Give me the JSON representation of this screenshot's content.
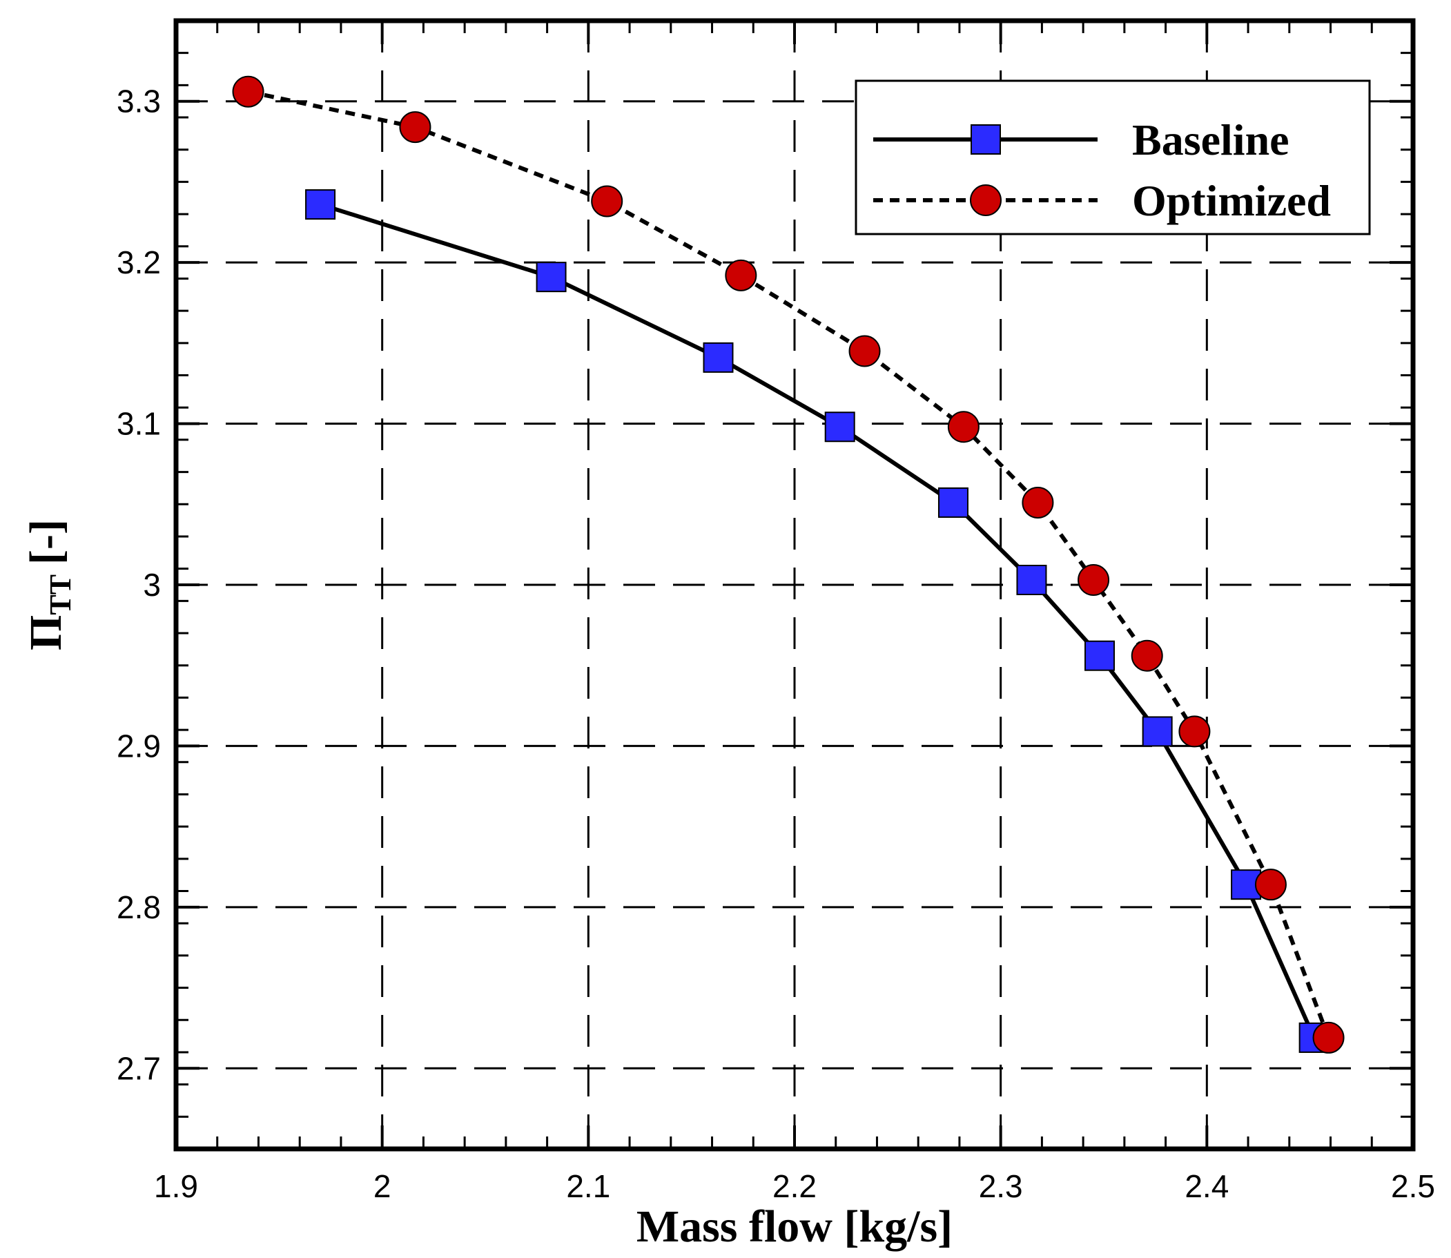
{
  "chart_data": {
    "type": "line",
    "xlabel": "Mass flow [kg/s]",
    "ylabel_main": "Π",
    "ylabel_sub": "TT",
    "ylabel_unit": "[-]",
    "xlim": [
      1.9,
      2.5
    ],
    "ylim": [
      2.65,
      3.35
    ],
    "x_ticks": [
      1.9,
      2.0,
      2.1,
      2.2,
      2.3,
      2.4,
      2.5
    ],
    "x_tick_labels": [
      "1.9",
      "2",
      "2.1",
      "2.2",
      "2.3",
      "2.4",
      "2.5"
    ],
    "y_ticks": [
      2.7,
      2.8,
      2.9,
      3.0,
      3.1,
      3.2,
      3.3
    ],
    "y_tick_labels": [
      "2.7",
      "2.8",
      "2.9",
      "3",
      "3.1",
      "3.2",
      "3.3"
    ],
    "grid": true,
    "legend_position": "top-right",
    "series": [
      {
        "name": "Baseline",
        "line": "solid",
        "marker": "square",
        "color": "#2b2bff",
        "x": [
          1.97,
          2.082,
          2.163,
          2.222,
          2.277,
          2.315,
          2.348,
          2.376,
          2.419,
          2.452
        ],
        "y": [
          3.236,
          3.191,
          3.141,
          3.098,
          3.051,
          3.003,
          2.956,
          2.909,
          2.814,
          2.719
        ]
      },
      {
        "name": "Optimized",
        "line": "dashed",
        "marker": "circle",
        "color": "#cc0000",
        "x": [
          1.935,
          2.016,
          2.109,
          2.174,
          2.234,
          2.282,
          2.318,
          2.345,
          2.371,
          2.394,
          2.431,
          2.459
        ],
        "y": [
          3.306,
          3.284,
          3.238,
          3.192,
          3.145,
          3.098,
          3.051,
          3.003,
          2.956,
          2.909,
          2.814,
          2.719
        ]
      }
    ]
  }
}
